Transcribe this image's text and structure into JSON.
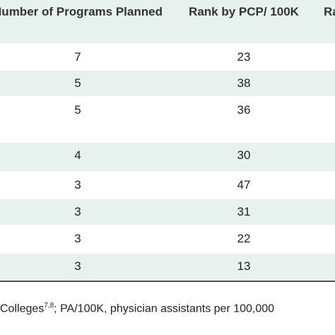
{
  "table": {
    "header": [
      "Number of Programs Planned",
      "Rank by PCP/ 100K",
      "Ra"
    ],
    "rows": [
      [
        7,
        23
      ],
      [
        5,
        38
      ],
      [
        5,
        36
      ],
      [
        4,
        30
      ],
      [
        3,
        47
      ],
      [
        3,
        31
      ],
      [
        3,
        22
      ],
      [
        3,
        13
      ]
    ]
  },
  "footnote": {
    "before": "Colleges",
    "sup": "7,8",
    "after": "; PA/100K, physician assistants per 100,000"
  }
}
